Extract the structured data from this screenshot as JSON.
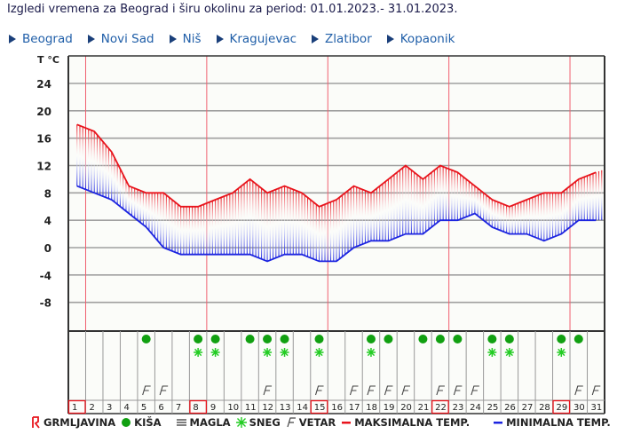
{
  "header": {
    "title": "Izgledi vremena za Beograd i širu okolinu za period: 01.01.2023.- 31.01.2023."
  },
  "nav": {
    "items": [
      {
        "label": "Beograd",
        "icon": "arrow-right-icon"
      },
      {
        "label": "Novi Sad",
        "icon": "arrow-right-icon"
      },
      {
        "label": "Niš",
        "icon": "arrow-right-icon"
      },
      {
        "label": "Kragujevac",
        "icon": "arrow-right-icon"
      },
      {
        "label": "Zlatibor",
        "icon": "arrow-right-icon"
      },
      {
        "label": "Kopaonik",
        "icon": "arrow-right-icon"
      }
    ]
  },
  "legend": {
    "thunder": "GRMLJAVINA",
    "rain": "KIŠA",
    "fog": "MAGLA",
    "snow": "SNEG",
    "wind": "VETAR",
    "max": "MAKSIMALNA TEMP.",
    "min": "MINIMALNA TEMP."
  },
  "colors": {
    "max_line": "#e8141c",
    "min_line": "#1c24e0",
    "rain": "#11a011",
    "snow": "#22cc22",
    "week_marker": "#f06070",
    "grid": "#999999"
  },
  "chart_data": {
    "type": "line",
    "title": "Izgledi vremena za Beograd i širu okolinu za period: 01.01.2023.- 31.01.2023.",
    "ylabel": "T °C",
    "xlabel": "",
    "ylim": [
      -12,
      28
    ],
    "yticks": [
      24,
      20,
      16,
      12,
      8,
      4,
      0,
      -4,
      -8
    ],
    "grid": true,
    "x": [
      1,
      2,
      3,
      4,
      5,
      6,
      7,
      8,
      9,
      10,
      11,
      12,
      13,
      14,
      15,
      16,
      17,
      18,
      19,
      20,
      21,
      22,
      23,
      24,
      25,
      26,
      27,
      28,
      29,
      30,
      31
    ],
    "series": [
      {
        "name": "MAKSIMALNA TEMP.",
        "color": "#e8141c",
        "values": [
          18,
          17,
          14,
          9,
          8,
          8,
          6,
          6,
          7,
          8,
          10,
          8,
          9,
          8,
          6,
          7,
          9,
          8,
          10,
          12,
          10,
          12,
          11,
          9,
          7,
          6,
          7,
          8,
          8,
          10,
          11
        ]
      },
      {
        "name": "MINIMALNA TEMP.",
        "color": "#1c24e0",
        "values": [
          9,
          8,
          7,
          5,
          3,
          0,
          -1,
          -1,
          -1,
          -1,
          -1,
          -2,
          -1,
          -1,
          -2,
          -2,
          0,
          1,
          1,
          2,
          2,
          4,
          4,
          5,
          3,
          2,
          2,
          1,
          2,
          4,
          4
        ]
      }
    ],
    "week_marker_days": [
      1,
      8,
      15,
      22,
      29
    ],
    "weather": {
      "rain_days": [
        5,
        8,
        9,
        11,
        12,
        13,
        15,
        18,
        19,
        21,
        22,
        23,
        25,
        26,
        29,
        30
      ],
      "snow_days": [
        8,
        9,
        12,
        13,
        15,
        18,
        25,
        26,
        29
      ],
      "wind_days": [
        5,
        6,
        12,
        15,
        17,
        18,
        19,
        20,
        22,
        23,
        24,
        30,
        31
      ],
      "fog_days": [],
      "thunder_days": []
    },
    "legend_position": "bottom"
  }
}
